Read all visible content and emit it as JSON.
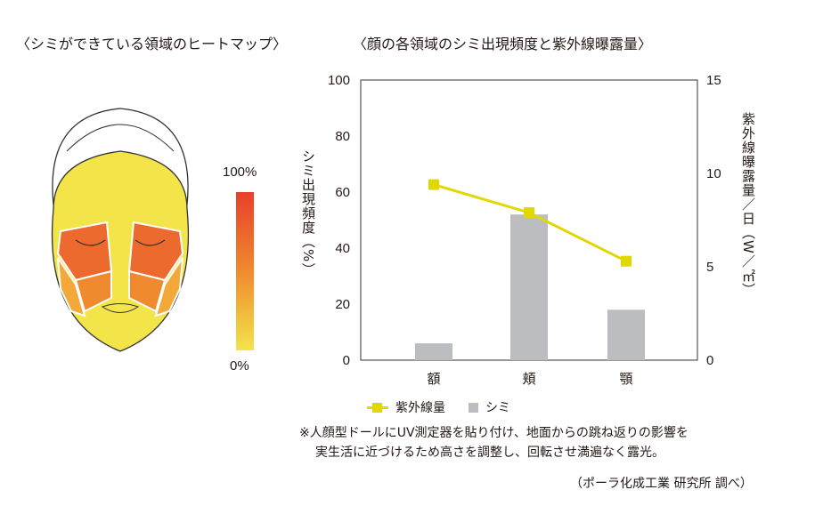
{
  "heatmap": {
    "title": "〈シミができている領域のヒートマップ〉",
    "scale_max": "100%",
    "scale_min": "0%",
    "scale_colors": [
      "#e8402a",
      "#f08a2e",
      "#f3e44a"
    ]
  },
  "chart_title": "〈顔の各領域のシミ出現頻度と紫外線曝露量〉",
  "chart_data": {
    "type": "bar+line",
    "categories": [
      "額",
      "頬",
      "顎"
    ],
    "series": [
      {
        "name": "シミ",
        "type": "bar",
        "axis": "left",
        "color": "#bcbdc0",
        "values": [
          6,
          52,
          18
        ]
      },
      {
        "name": "紫外線量",
        "type": "line",
        "axis": "right",
        "color": "#e0d800",
        "values": [
          9.4,
          7.9,
          5.3
        ]
      }
    ],
    "ylabel": "シミ出現頻度（%）",
    "y2label": "紫外線曝露量／日（W／㎡）",
    "ylim": [
      0,
      100
    ],
    "yticks": [
      "0",
      "20",
      "40",
      "60",
      "80",
      "100"
    ],
    "y2lim": [
      0,
      15
    ],
    "y2ticks": [
      "0",
      "5",
      "10",
      "15"
    ],
    "legend": "bottom",
    "grid": false
  },
  "legend": {
    "uv": "紫外線量",
    "spot": "シミ"
  },
  "note": {
    "line1": "※人顔型ドールにUV測定器を貼り付け、地面からの跳ね返りの影響を",
    "line2": "実生活に近づけるため高さを調整し、回転させ満遍なく露光。"
  },
  "source": "（ポーラ化成工業 研究所 調べ）"
}
